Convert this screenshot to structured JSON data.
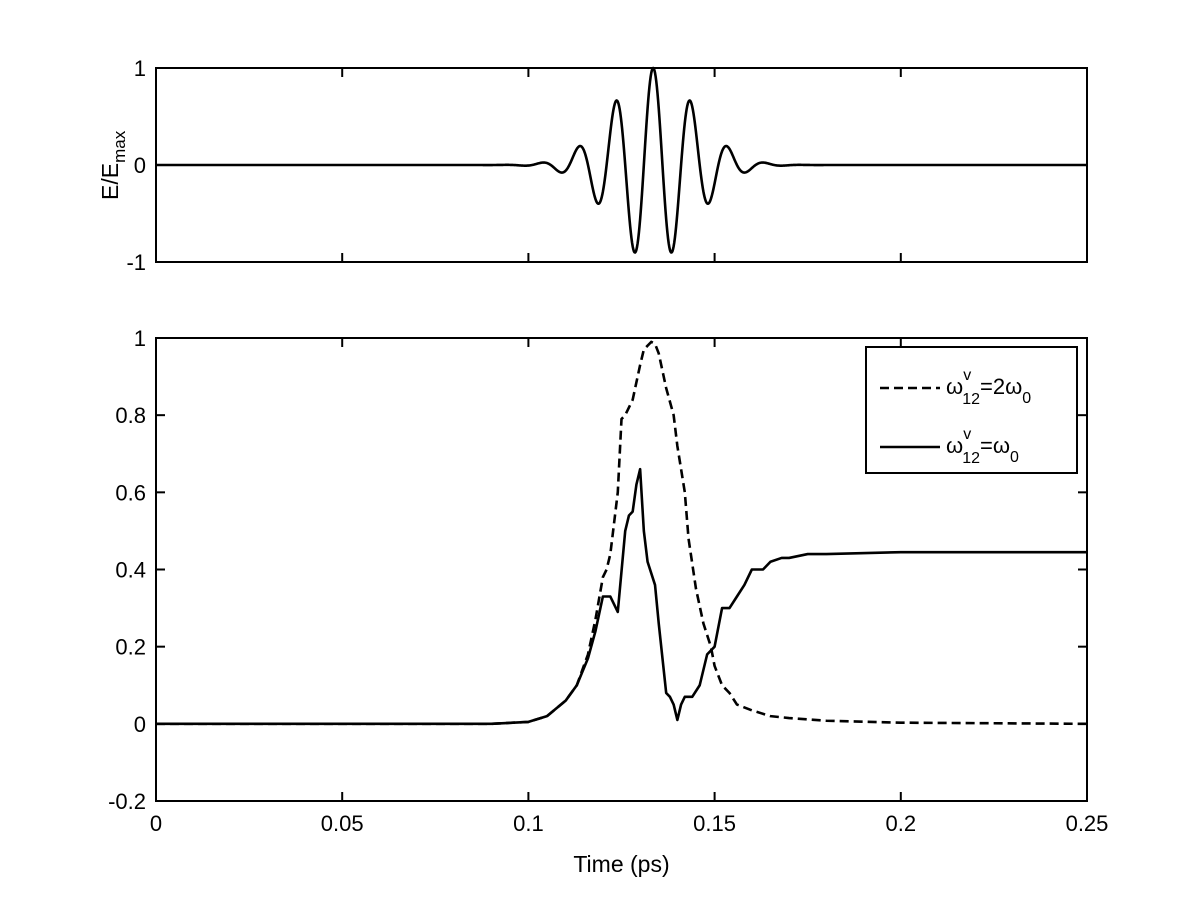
{
  "chart_data": [
    {
      "type": "line",
      "title": "",
      "xlabel": "",
      "ylabel": "E/E",
      "ylabel_subscript": "max",
      "xlim": [
        0,
        0.25
      ],
      "ylim": [
        -1,
        1
      ],
      "xticks": [
        0,
        0.05,
        0.1,
        0.15,
        0.2,
        0.25
      ],
      "yticks": [
        -1,
        0,
        1
      ],
      "ytick_labels": [
        "-1",
        "0",
        "1"
      ],
      "grid": false,
      "series": [
        {
          "style": "solid",
          "pulse": {
            "center": 0.1335,
            "width": 0.0155,
            "frequency_per_ps": 100.0,
            "amplitude": 1.0
          }
        }
      ]
    },
    {
      "type": "line",
      "title": "",
      "xlabel": "Time (ps)",
      "ylabel": "",
      "xlim": [
        0,
        0.25
      ],
      "ylim": [
        -0.2,
        1
      ],
      "xticks": [
        0,
        0.05,
        0.1,
        0.15,
        0.2,
        0.25
      ],
      "xtick_labels": [
        "0",
        "0.05",
        "0.1",
        "0.15",
        "0.2",
        "0.25"
      ],
      "yticks": [
        -0.2,
        0,
        0.2,
        0.4,
        0.6,
        0.8,
        1
      ],
      "ytick_labels": [
        "-0.2",
        "0",
        "0.2",
        "0.4",
        "0.6",
        "0.8",
        "1"
      ],
      "grid": false,
      "legend_position": "top-right",
      "series": [
        {
          "legend": {
            "base": "ω",
            "sup": "v",
            "sub": "12",
            "rest": "=2ω",
            "rest_sub": "0"
          },
          "style": "dashed",
          "x": [
            0,
            0.05,
            0.09,
            0.1,
            0.105,
            0.11,
            0.113,
            0.116,
            0.118,
            0.12,
            0.121,
            0.122,
            0.124,
            0.125,
            0.126,
            0.128,
            0.13,
            0.131,
            0.133,
            0.134,
            0.135,
            0.137,
            0.139,
            0.14,
            0.142,
            0.143,
            0.145,
            0.147,
            0.149,
            0.15,
            0.152,
            0.154,
            0.156,
            0.16,
            0.165,
            0.17,
            0.18,
            0.2,
            0.25
          ],
          "y": [
            0,
            0,
            0,
            0.005,
            0.02,
            0.06,
            0.1,
            0.18,
            0.27,
            0.38,
            0.4,
            0.44,
            0.6,
            0.79,
            0.8,
            0.84,
            0.93,
            0.97,
            0.99,
            0.985,
            0.96,
            0.87,
            0.8,
            0.72,
            0.6,
            0.48,
            0.35,
            0.26,
            0.2,
            0.15,
            0.1,
            0.08,
            0.05,
            0.035,
            0.02,
            0.015,
            0.008,
            0.003,
            0
          ]
        },
        {
          "legend": {
            "base": "ω",
            "sup": "v",
            "sub": "12",
            "rest": "=ω",
            "rest_sub": "0"
          },
          "style": "solid",
          "x": [
            0,
            0.05,
            0.09,
            0.1,
            0.105,
            0.11,
            0.113,
            0.116,
            0.118,
            0.12,
            0.122,
            0.124,
            0.126,
            0.127,
            0.128,
            0.129,
            0.13,
            0.131,
            0.132,
            0.134,
            0.135,
            0.137,
            0.138,
            0.139,
            0.14,
            0.141,
            0.142,
            0.144,
            0.146,
            0.148,
            0.15,
            0.152,
            0.154,
            0.156,
            0.158,
            0.16,
            0.163,
            0.165,
            0.168,
            0.17,
            0.175,
            0.18,
            0.2,
            0.25
          ],
          "y": [
            0,
            0,
            0,
            0.005,
            0.02,
            0.06,
            0.1,
            0.17,
            0.24,
            0.33,
            0.33,
            0.29,
            0.5,
            0.54,
            0.55,
            0.62,
            0.66,
            0.5,
            0.42,
            0.36,
            0.26,
            0.08,
            0.07,
            0.05,
            0.01,
            0.05,
            0.07,
            0.07,
            0.1,
            0.18,
            0.2,
            0.3,
            0.3,
            0.33,
            0.36,
            0.4,
            0.4,
            0.42,
            0.43,
            0.43,
            0.44,
            0.44,
            0.445,
            0.445
          ]
        }
      ]
    }
  ]
}
